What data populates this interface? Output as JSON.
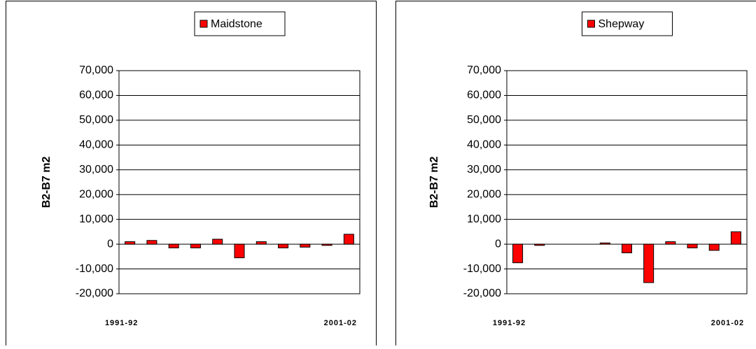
{
  "chart_data": [
    {
      "type": "bar",
      "y_label": "B2-B7 m2",
      "categories": [
        "1991-92",
        null,
        null,
        null,
        null,
        null,
        null,
        null,
        null,
        null,
        "2001-02"
      ],
      "series": [
        {
          "name": "Maidstone",
          "color": "#ff0000",
          "values": [
            1000,
            1500,
            -1500,
            -1500,
            2000,
            -5500,
            1000,
            -1500,
            -1200,
            -500,
            4000
          ]
        }
      ],
      "ylim": [
        -20000,
        70000
      ],
      "yticks": [
        {
          "value": -20000,
          "label": "-20,000"
        },
        {
          "value": -10000,
          "label": "-10,000"
        },
        0,
        {
          "value": 10000,
          "label": "10,000"
        },
        {
          "value": 20000,
          "label": "20,000"
        },
        {
          "value": 30000,
          "label": "30,000"
        },
        {
          "value": 40000,
          "label": "40,000"
        },
        {
          "value": 50000,
          "label": "50,000"
        },
        {
          "value": 60000,
          "label": "60,000"
        },
        {
          "value": 70000,
          "label": "70,000"
        }
      ],
      "grid": true
    },
    {
      "type": "bar",
      "y_label": "B2-B7 m2",
      "categories": [
        "1991-92",
        null,
        null,
        null,
        null,
        null,
        null,
        null,
        null,
        null,
        "2001-02"
      ],
      "series": [
        {
          "name": "Shepway",
          "color": "#ff0000",
          "values": [
            -7500,
            -500,
            0,
            0,
            500,
            -3500,
            -15500,
            1000,
            -1500,
            -2500,
            5000
          ]
        }
      ],
      "ylim": [
        -20000,
        70000
      ],
      "yticks": [
        {
          "value": -20000,
          "label": "-20,000"
        },
        {
          "value": -10000,
          "label": "-10,000"
        },
        0,
        {
          "value": 10000,
          "label": "10,000"
        },
        {
          "value": 20000,
          "label": "20,000"
        },
        {
          "value": 30000,
          "label": "30,000"
        },
        {
          "value": 40000,
          "label": "40,000"
        },
        {
          "value": 50000,
          "label": "50,000"
        },
        {
          "value": 60000,
          "label": "60,000"
        },
        {
          "value": 70000,
          "label": "70,000"
        }
      ],
      "grid": true
    }
  ]
}
